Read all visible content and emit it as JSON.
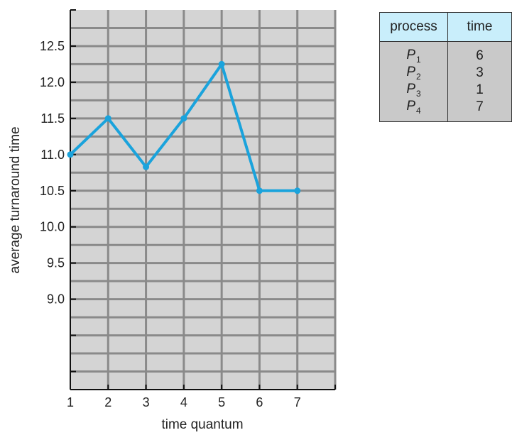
{
  "chart_data": {
    "type": "line",
    "xlabel": "time quantum",
    "ylabel": "average turnaround time",
    "x": [
      1,
      2,
      3,
      4,
      5,
      6,
      7
    ],
    "series": [
      {
        "values": [
          11.0,
          11.5,
          10.83,
          11.5,
          12.25,
          10.5,
          10.5
        ]
      }
    ],
    "x_ticks": [
      "1",
      "2",
      "3",
      "4",
      "5",
      "6",
      "7"
    ],
    "y_ticks": [
      "12.5",
      "12.0",
      "11.5",
      "11.0",
      "10.5",
      "10.0",
      "9.5",
      "9.0"
    ],
    "y_tick_values": [
      12.5,
      12.0,
      11.5,
      11.0,
      10.5,
      10.0,
      9.5,
      9.0
    ],
    "xlim": [
      1,
      8
    ],
    "ylim": [
      7.75,
      13.0
    ],
    "grid": true,
    "colors": {
      "line": "#1aa3dc",
      "plot_background": "#d4d4d4",
      "grid": "#8a8a8a"
    }
  },
  "table": {
    "headers": [
      "process",
      "time"
    ],
    "rows": [
      {
        "name": "P",
        "sub": "1",
        "time": "6"
      },
      {
        "name": "P",
        "sub": "2",
        "time": "3"
      },
      {
        "name": "P",
        "sub": "3",
        "time": "1"
      },
      {
        "name": "P",
        "sub": "4",
        "time": "7"
      }
    ],
    "colors": {
      "header": "#c9eefb",
      "body": "#c9c9c9"
    }
  }
}
